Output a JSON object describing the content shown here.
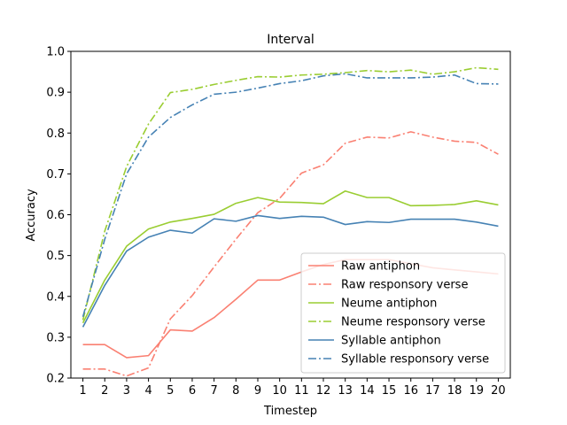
{
  "chart_data": {
    "type": "line",
    "title": "Interval",
    "xlabel": "Timestep",
    "ylabel": "Accuracy",
    "x": [
      1,
      2,
      3,
      4,
      5,
      6,
      7,
      8,
      9,
      10,
      11,
      12,
      13,
      14,
      15,
      16,
      17,
      18,
      19,
      20
    ],
    "xlim": [
      0.45,
      20.55
    ],
    "ylim": [
      0.2,
      1.0
    ],
    "yticks": [
      "0.2",
      "0.3",
      "0.4",
      "0.5",
      "0.6",
      "0.7",
      "0.8",
      "0.9",
      "1.0"
    ],
    "legend_position": "lower right",
    "grid": false,
    "series": [
      {
        "name": "Raw antiphon",
        "color": "#fa8072",
        "style": "solid",
        "values": [
          0.282,
          0.282,
          0.25,
          0.255,
          0.318,
          0.315,
          0.348,
          0.393,
          0.44,
          0.44,
          0.46,
          0.478,
          0.49,
          0.49,
          0.49,
          0.48,
          0.47,
          0.465,
          0.46,
          0.455
        ]
      },
      {
        "name": "Raw responsory verse",
        "color": "#fa8072",
        "style": "dashdot",
        "values": [
          0.222,
          0.222,
          0.205,
          0.225,
          0.345,
          0.402,
          0.472,
          0.54,
          0.605,
          0.64,
          0.702,
          0.722,
          0.775,
          0.79,
          0.788,
          0.803,
          0.79,
          0.78,
          0.777,
          0.748
        ]
      },
      {
        "name": "Neume antiphon",
        "color": "#9acd32",
        "style": "solid",
        "values": [
          0.335,
          0.44,
          0.523,
          0.565,
          0.582,
          0.591,
          0.601,
          0.628,
          0.642,
          0.631,
          0.63,
          0.627,
          0.658,
          0.642,
          0.642,
          0.622,
          0.623,
          0.625,
          0.634,
          0.624
        ]
      },
      {
        "name": "Neume responsory verse",
        "color": "#9acd32",
        "style": "dashdot",
        "values": [
          0.342,
          0.56,
          0.718,
          0.822,
          0.899,
          0.907,
          0.919,
          0.929,
          0.938,
          0.937,
          0.942,
          0.944,
          0.948,
          0.953,
          0.95,
          0.954,
          0.944,
          0.95,
          0.96,
          0.956
        ]
      },
      {
        "name": "Syllable antiphon",
        "color": "#4682b4",
        "style": "solid",
        "values": [
          0.325,
          0.427,
          0.511,
          0.545,
          0.562,
          0.555,
          0.59,
          0.584,
          0.598,
          0.591,
          0.596,
          0.594,
          0.576,
          0.583,
          0.581,
          0.589,
          0.589,
          0.589,
          0.582,
          0.572
        ]
      },
      {
        "name": "Syllable responsory verse",
        "color": "#4682b4",
        "style": "dashdot",
        "values": [
          0.35,
          0.54,
          0.7,
          0.79,
          0.838,
          0.869,
          0.895,
          0.9,
          0.91,
          0.921,
          0.928,
          0.94,
          0.945,
          0.935,
          0.935,
          0.935,
          0.937,
          0.942,
          0.921,
          0.92
        ]
      }
    ]
  }
}
